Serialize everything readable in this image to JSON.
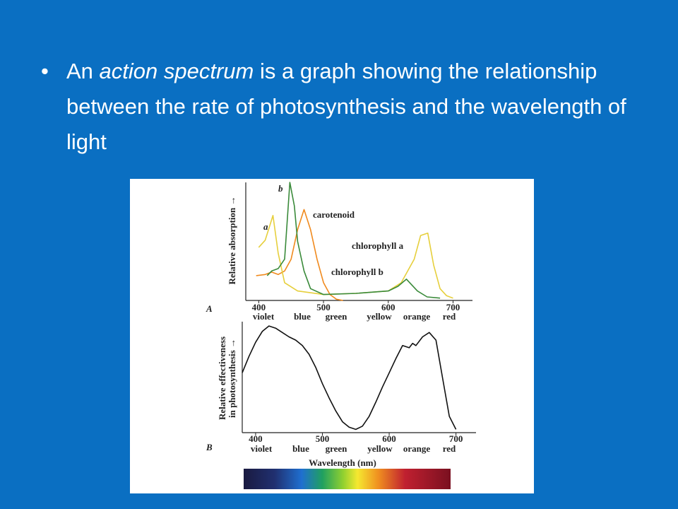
{
  "slide": {
    "bullet": {
      "parts": [
        "An ",
        "action spectrum",
        " is a graph showing the relationship between the rate of photosynthesis and the wavelength of light"
      ]
    }
  },
  "chart_data": [
    {
      "type": "line",
      "panel": "A",
      "ylabel": "Relative absorption →",
      "xlim": [
        380,
        730
      ],
      "xticks": [
        400,
        500,
        600,
        700
      ],
      "ylim": [
        0,
        100
      ],
      "band_labels": [
        "violet",
        "blue",
        "green",
        "yellow",
        "orange",
        "red"
      ],
      "annotations": [
        "b",
        "a"
      ],
      "series": [
        {
          "name": "carotenoid",
          "color": "#f08a1e",
          "x": [
            396,
            410,
            420,
            430,
            440,
            450,
            460,
            470,
            480,
            490,
            500,
            510,
            520,
            530
          ],
          "values": [
            21,
            22,
            24,
            22,
            25,
            35,
            60,
            77,
            60,
            35,
            15,
            5,
            1,
            0
          ]
        },
        {
          "name": "chlorophyll a",
          "color": "#e6cf3c",
          "x": [
            400,
            410,
            422,
            430,
            440,
            460,
            500,
            550,
            600,
            620,
            640,
            650,
            661,
            670,
            680,
            690,
            700
          ],
          "values": [
            45,
            51,
            72,
            40,
            15,
            8,
            5,
            6,
            8,
            15,
            35,
            55,
            57,
            30,
            10,
            4,
            2
          ]
        },
        {
          "name": "chlorophyll b",
          "color": "#3a8a3a",
          "x": [
            413,
            420,
            430,
            440,
            448,
            455,
            460,
            470,
            480,
            500,
            550,
            600,
            615,
            628,
            645,
            660,
            680
          ],
          "values": [
            21,
            25,
            27,
            35,
            100,
            80,
            50,
            25,
            10,
            5,
            6,
            8,
            12,
            18,
            8,
            3,
            2
          ]
        }
      ]
    },
    {
      "type": "line",
      "panel": "B",
      "ylabel": [
        "Relative effectiveness",
        "in photosynthesis →"
      ],
      "xlabel": "Wavelength (nm)",
      "xlim": [
        380,
        730
      ],
      "xticks": [
        400,
        500,
        600,
        700
      ],
      "ylim": [
        0,
        100
      ],
      "band_labels": [
        "violet",
        "blue",
        "green",
        "yellow",
        "orange",
        "red"
      ],
      "series": [
        {
          "color": "#111111",
          "x": [
            380,
            390,
            400,
            410,
            420,
            430,
            440,
            450,
            460,
            470,
            480,
            490,
            500,
            510,
            520,
            530,
            540,
            550,
            560,
            570,
            580,
            590,
            600,
            610,
            620,
            630,
            635,
            640,
            650,
            660,
            670,
            680,
            690,
            700
          ],
          "values": [
            55,
            70,
            83,
            93,
            98,
            96,
            92,
            88,
            85,
            80,
            72,
            60,
            45,
            32,
            20,
            10,
            5,
            3,
            6,
            15,
            28,
            42,
            55,
            68,
            80,
            78,
            82,
            80,
            88,
            92,
            85,
            50,
            15,
            3
          ]
        }
      ]
    }
  ]
}
